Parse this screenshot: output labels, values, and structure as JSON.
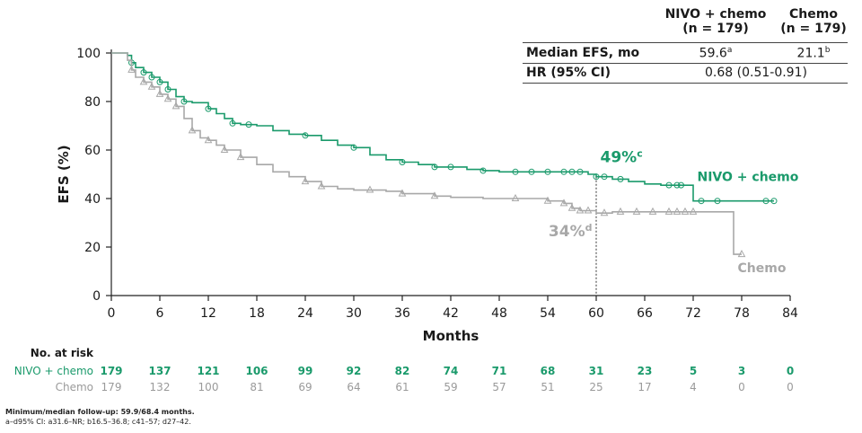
{
  "chart_data": {
    "type": "line",
    "step": true,
    "xlabel": "Months",
    "ylabel": "EFS (%)",
    "xlim": [
      0,
      84
    ],
    "ylim": [
      0,
      100
    ],
    "xticks": [
      0,
      6,
      12,
      18,
      24,
      30,
      36,
      42,
      48,
      54,
      60,
      66,
      72,
      78,
      84
    ],
    "yticks": [
      0,
      20,
      40,
      60,
      80,
      100
    ],
    "series": [
      {
        "name": "NIVO + chemo",
        "color": "#1a9a6b",
        "marker": "circle",
        "points": [
          [
            0,
            100
          ],
          [
            2,
            99
          ],
          [
            2.5,
            96
          ],
          [
            3,
            94
          ],
          [
            4,
            92
          ],
          [
            5,
            90
          ],
          [
            6,
            88
          ],
          [
            7,
            85
          ],
          [
            8,
            82
          ],
          [
            9,
            80
          ],
          [
            10,
            79.5
          ],
          [
            12,
            77
          ],
          [
            13,
            75
          ],
          [
            14,
            73
          ],
          [
            15,
            71
          ],
          [
            16,
            70.5
          ],
          [
            18,
            70
          ],
          [
            20,
            68
          ],
          [
            22,
            66.5
          ],
          [
            24,
            66
          ],
          [
            26,
            64
          ],
          [
            28,
            62
          ],
          [
            30,
            61
          ],
          [
            32,
            58
          ],
          [
            34,
            56
          ],
          [
            36,
            55
          ],
          [
            38,
            54
          ],
          [
            40,
            53
          ],
          [
            42,
            53
          ],
          [
            44,
            52
          ],
          [
            46,
            51.5
          ],
          [
            48,
            51
          ],
          [
            50,
            51
          ],
          [
            54,
            51
          ],
          [
            56,
            51
          ],
          [
            58,
            51
          ],
          [
            59,
            50
          ],
          [
            60,
            49
          ],
          [
            62,
            48
          ],
          [
            64,
            47
          ],
          [
            66,
            46
          ],
          [
            68,
            45.5
          ],
          [
            70,
            45.5
          ],
          [
            71,
            45.5
          ],
          [
            72,
            39
          ],
          [
            76,
            39
          ],
          [
            82,
            39
          ]
        ],
        "censor": [
          2.5,
          4,
          5,
          6,
          7,
          9,
          12,
          15,
          17,
          24,
          30,
          36,
          40,
          42,
          46,
          50,
          52,
          54,
          56,
          57,
          58,
          60,
          61,
          63,
          69,
          70,
          70.5,
          73,
          75,
          81,
          82
        ],
        "end_label": "NIVO + chemo",
        "annotation": "49%",
        "annotation_sup": "c"
      },
      {
        "name": "Chemo",
        "color": "#a8a8a8",
        "marker": "triangle",
        "points": [
          [
            0,
            100
          ],
          [
            2,
            97
          ],
          [
            2.5,
            93
          ],
          [
            3,
            90
          ],
          [
            4,
            88
          ],
          [
            5,
            86
          ],
          [
            6,
            83
          ],
          [
            7,
            81
          ],
          [
            8,
            78
          ],
          [
            9,
            73
          ],
          [
            10,
            68
          ],
          [
            11,
            65
          ],
          [
            12,
            64
          ],
          [
            13,
            62
          ],
          [
            14,
            60
          ],
          [
            16,
            57
          ],
          [
            18,
            54
          ],
          [
            20,
            51
          ],
          [
            22,
            49
          ],
          [
            24,
            47
          ],
          [
            26,
            45
          ],
          [
            28,
            44
          ],
          [
            30,
            43.5
          ],
          [
            34,
            43
          ],
          [
            36,
            42
          ],
          [
            40,
            41
          ],
          [
            42,
            40.5
          ],
          [
            46,
            40
          ],
          [
            50,
            40
          ],
          [
            54,
            39
          ],
          [
            56,
            38
          ],
          [
            57,
            36
          ],
          [
            58,
            35
          ],
          [
            60,
            34
          ],
          [
            62,
            34.5
          ],
          [
            74,
            34.5
          ],
          [
            76,
            34.5
          ],
          [
            77,
            17
          ],
          [
            78,
            17
          ]
        ],
        "censor": [
          2.5,
          4,
          5,
          6,
          7,
          8,
          10,
          12,
          14,
          16,
          24,
          26,
          32,
          36,
          40,
          50,
          54,
          56,
          57,
          58,
          59,
          61,
          63,
          65,
          67,
          69,
          70,
          71,
          72,
          78
        ],
        "end_label": "Chemo",
        "annotation": "34%",
        "annotation_sup": "d"
      }
    ],
    "reference_line": {
      "x": 60
    }
  },
  "summary_table": {
    "col1_header": [
      "NIVO + chemo",
      "(n = 179)"
    ],
    "col2_header": [
      "Chemo",
      "(n = 179)"
    ],
    "rows": [
      {
        "label": "Median EFS, mo",
        "v1": "59.6",
        "v1_sup": "a",
        "v2": "21.1",
        "v2_sup": "b"
      },
      {
        "label": "HR (95% CI)",
        "combined": "0.68 (0.51-0.91)"
      }
    ]
  },
  "at_risk": {
    "title": "No. at risk",
    "rows": [
      {
        "label": "NIVO + chemo",
        "values": [
          "179",
          "137",
          "121",
          "106",
          "99",
          "92",
          "82",
          "74",
          "71",
          "68",
          "31",
          "23",
          "5",
          "3",
          "0"
        ]
      },
      {
        "label": "Chemo",
        "values": [
          "179",
          "132",
          "100",
          "81",
          "69",
          "64",
          "61",
          "59",
          "57",
          "51",
          "25",
          "17",
          "4",
          "0",
          "0"
        ]
      }
    ]
  },
  "footnotes": {
    "line1": "Minimum/median follow-up: 59.9/68.4 months.",
    "line2": "a–d95% CI: a31.6–NR; b16.5–36.8; c41–57; d27–42."
  }
}
